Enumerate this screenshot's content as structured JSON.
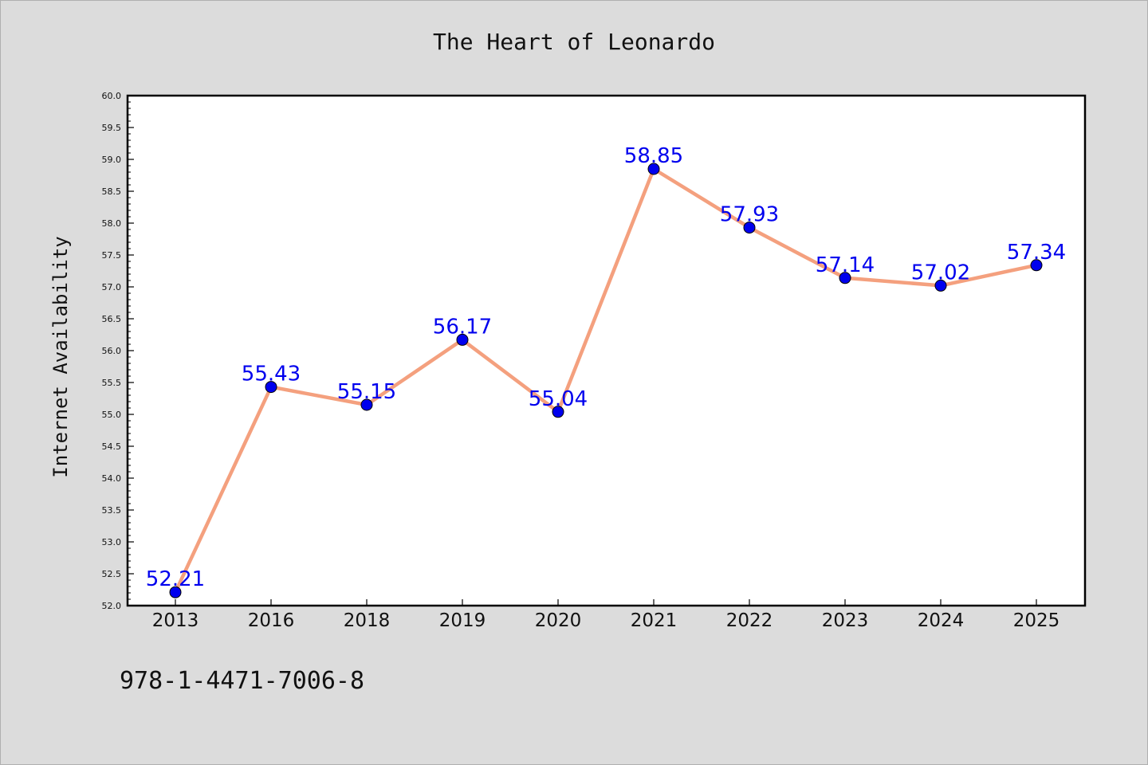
{
  "chart_data": {
    "type": "line",
    "title": "The Heart of Leonardo",
    "xlabel": "",
    "ylabel": "Internet Availability",
    "categories": [
      "2013",
      "2016",
      "2018",
      "2019",
      "2020",
      "2021",
      "2022",
      "2023",
      "2024",
      "2025"
    ],
    "series": [
      {
        "values": [
          52.21,
          55.43,
          55.15,
          56.17,
          55.04,
          58.85,
          57.93,
          57.14,
          57.02,
          57.34
        ],
        "data_labels": [
          "52.21",
          "55.43",
          "55.15",
          "56.17",
          "55.04",
          "58.85",
          "57.93",
          "57.14",
          "57.02",
          "57.34"
        ]
      }
    ],
    "ylim": [
      52.0,
      60.0
    ],
    "yticks": [
      52.0,
      52.5,
      53.0,
      53.5,
      54.0,
      54.5,
      55.0,
      55.5,
      56.0,
      56.5,
      57.0,
      57.5,
      58.0,
      58.5,
      59.0,
      59.5,
      60.0
    ],
    "ytick_labels": [
      "52.0",
      "52.5",
      "53.0",
      "53.5",
      "54.0",
      "54.5",
      "55.0",
      "55.5",
      "56.0",
      "56.5",
      "57.0",
      "57.5",
      "58.0",
      "58.5",
      "59.0",
      "59.5",
      "60.0"
    ],
    "grid": false,
    "legend": "none"
  },
  "footer": {
    "isbn": "978-1-4471-7006-8"
  },
  "colors": {
    "background": "#dcdcdc",
    "plot_background": "#ffffff",
    "line": "#f4a07e",
    "marker": "#0000ee",
    "label": "#0000ee"
  }
}
